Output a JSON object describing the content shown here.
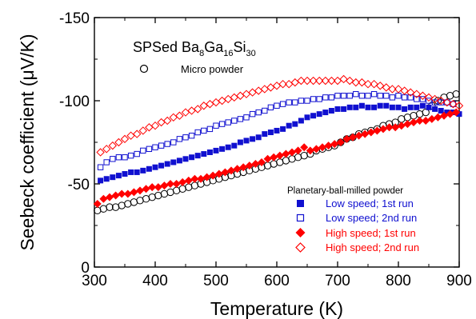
{
  "chart_data": {
    "type": "scatter",
    "title_main": "SPSed Ba",
    "title_sub1": "8",
    "title_mid1": "Ga",
    "title_sub2": "16",
    "title_mid2": "Si",
    "title_sub3": "30",
    "xlabel": "Temperature (K)",
    "ylabel": "Seebeck coefficient (μV/K)",
    "xlim": [
      300,
      900
    ],
    "ylim": [
      0,
      -150
    ],
    "xticks": [
      "300",
      "400",
      "500",
      "600",
      "700",
      "800",
      "900"
    ],
    "yticks": [
      "0",
      "-50",
      "-100",
      "-150"
    ],
    "xtick_values": [
      300,
      400,
      500,
      600,
      700,
      800,
      900
    ],
    "ytick_values": [
      0,
      -50,
      -100,
      -150
    ],
    "legend_top": "Micro powder",
    "legend_group_title": "Planetary-ball-milled powder",
    "series": [
      {
        "name": "Micro powder",
        "marker": "circle-open",
        "color": "#000000",
        "x": [
          305,
          315,
          325,
          335,
          345,
          355,
          365,
          375,
          385,
          395,
          405,
          415,
          425,
          435,
          445,
          455,
          465,
          475,
          485,
          495,
          505,
          515,
          525,
          535,
          545,
          555,
          565,
          575,
          585,
          595,
          605,
          615,
          625,
          635,
          645,
          655,
          665,
          675,
          685,
          695,
          705,
          715,
          725,
          735,
          745,
          755,
          765,
          775,
          785,
          795,
          805,
          815,
          825,
          835,
          845,
          855,
          865,
          875,
          885,
          895
        ],
        "y": [
          -34,
          -35,
          -36,
          -36,
          -37,
          -38,
          -39,
          -40,
          -41,
          -42,
          -43,
          -44,
          -45,
          -46,
          -47,
          -48,
          -49,
          -50,
          -51,
          -52,
          -53,
          -54,
          -55,
          -56,
          -57,
          -58,
          -59,
          -60,
          -61,
          -62,
          -63,
          -64,
          -65,
          -66,
          -67,
          -68,
          -70,
          -71,
          -72,
          -73,
          -75,
          -77,
          -78,
          -80,
          -81,
          -82,
          -83,
          -85,
          -86,
          -87,
          -89,
          -90,
          -91,
          -92,
          -93,
          -97,
          -100,
          -102,
          -103,
          -104
        ]
      },
      {
        "name": "Low speed; 1st run",
        "marker": "square-filled",
        "color": "#1010d0",
        "x": [
          310,
          320,
          330,
          340,
          350,
          360,
          370,
          380,
          390,
          400,
          410,
          420,
          430,
          440,
          450,
          460,
          470,
          480,
          490,
          500,
          510,
          520,
          530,
          540,
          550,
          560,
          570,
          580,
          590,
          600,
          610,
          620,
          630,
          640,
          650,
          660,
          670,
          680,
          690,
          700,
          710,
          720,
          730,
          740,
          750,
          760,
          770,
          780,
          790,
          800,
          810,
          820,
          830,
          840,
          850,
          860,
          870,
          880,
          890,
          900
        ],
        "y": [
          -52,
          -53,
          -54,
          -55,
          -56,
          -57,
          -57,
          -58,
          -59,
          -60,
          -61,
          -62,
          -63,
          -64,
          -65,
          -66,
          -67,
          -68,
          -69,
          -70,
          -71,
          -72,
          -73,
          -75,
          -76,
          -77,
          -78,
          -80,
          -81,
          -82,
          -83,
          -85,
          -86,
          -88,
          -90,
          -91,
          -92,
          -93,
          -94,
          -95,
          -95,
          -96,
          -96,
          -97,
          -96,
          -96,
          -97,
          -97,
          -96,
          -96,
          -95,
          -96,
          -96,
          -97,
          -96,
          -95,
          -94,
          -93,
          -93,
          -92
        ]
      },
      {
        "name": "Low speed; 2nd run",
        "marker": "square-open",
        "color": "#1010d0",
        "x": [
          310,
          320,
          330,
          340,
          350,
          360,
          370,
          380,
          390,
          400,
          410,
          420,
          430,
          440,
          450,
          460,
          470,
          480,
          490,
          500,
          510,
          520,
          530,
          540,
          550,
          560,
          570,
          580,
          590,
          600,
          610,
          620,
          630,
          640,
          650,
          660,
          670,
          680,
          690,
          700,
          710,
          720,
          730,
          740,
          750,
          760,
          770,
          780,
          790,
          800,
          810,
          820,
          830,
          840,
          850,
          860,
          870,
          880,
          890
        ],
        "y": [
          -60,
          -63,
          -65,
          -66,
          -66,
          -67,
          -68,
          -70,
          -71,
          -72,
          -73,
          -74,
          -75,
          -77,
          -78,
          -79,
          -81,
          -82,
          -83,
          -85,
          -86,
          -87,
          -88,
          -89,
          -90,
          -92,
          -93,
          -94,
          -96,
          -97,
          -98,
          -99,
          -99,
          -100,
          -100,
          -101,
          -101,
          -102,
          -102,
          -103,
          -103,
          -103,
          -104,
          -103,
          -103,
          -104,
          -103,
          -103,
          -102,
          -103,
          -102,
          -102,
          -101,
          -101,
          -100,
          -99,
          -99,
          -99,
          -98
        ]
      },
      {
        "name": "High speed; 1st run",
        "marker": "diamond-filled",
        "color": "#ff0000",
        "x": [
          305,
          315,
          325,
          335,
          345,
          355,
          365,
          375,
          385,
          395,
          405,
          415,
          425,
          435,
          445,
          455,
          465,
          475,
          485,
          495,
          505,
          515,
          525,
          535,
          545,
          555,
          565,
          575,
          585,
          595,
          605,
          615,
          625,
          635,
          645,
          655,
          665,
          675,
          685,
          695,
          705,
          715,
          725,
          735,
          745,
          755,
          765,
          775,
          785,
          795,
          805,
          815,
          825,
          835,
          845,
          855,
          865,
          875,
          885,
          895
        ],
        "y": [
          -38,
          -41,
          -42,
          -43,
          -44,
          -44,
          -45,
          -46,
          -47,
          -48,
          -48,
          -49,
          -50,
          -50,
          -51,
          -52,
          -53,
          -53,
          -54,
          -55,
          -56,
          -57,
          -58,
          -59,
          -60,
          -61,
          -62,
          -63,
          -65,
          -66,
          -67,
          -68,
          -69,
          -70,
          -72,
          -70,
          -71,
          -72,
          -73,
          -74,
          -75,
          -77,
          -78,
          -79,
          -80,
          -81,
          -82,
          -83,
          -84,
          -84,
          -85,
          -86,
          -87,
          -88,
          -88,
          -89,
          -90,
          -91,
          -92,
          -93
        ]
      },
      {
        "name": "High speed; 2nd run",
        "marker": "diamond-open",
        "color": "#ff0000",
        "x": [
          310,
          320,
          330,
          340,
          350,
          360,
          370,
          380,
          390,
          400,
          410,
          420,
          430,
          440,
          450,
          460,
          470,
          480,
          490,
          500,
          510,
          520,
          530,
          540,
          550,
          560,
          570,
          580,
          590,
          600,
          610,
          620,
          630,
          640,
          650,
          660,
          670,
          680,
          690,
          700,
          710,
          720,
          730,
          740,
          750,
          760,
          770,
          780,
          790,
          800,
          810,
          820,
          830,
          840,
          850,
          860,
          870,
          880,
          890,
          900
        ],
        "y": [
          -69,
          -71,
          -73,
          -75,
          -77,
          -79,
          -80,
          -82,
          -84,
          -85,
          -87,
          -88,
          -90,
          -91,
          -93,
          -94,
          -95,
          -97,
          -98,
          -99,
          -100,
          -101,
          -102,
          -103,
          -104,
          -105,
          -106,
          -107,
          -108,
          -109,
          -110,
          -110,
          -111,
          -112,
          -112,
          -112,
          -112,
          -112,
          -112,
          -112,
          -113,
          -112,
          -111,
          -111,
          -110,
          -110,
          -109,
          -108,
          -107,
          -107,
          -106,
          -105,
          -104,
          -103,
          -102,
          -101,
          -100,
          -99,
          -98,
          -97
        ]
      }
    ]
  }
}
